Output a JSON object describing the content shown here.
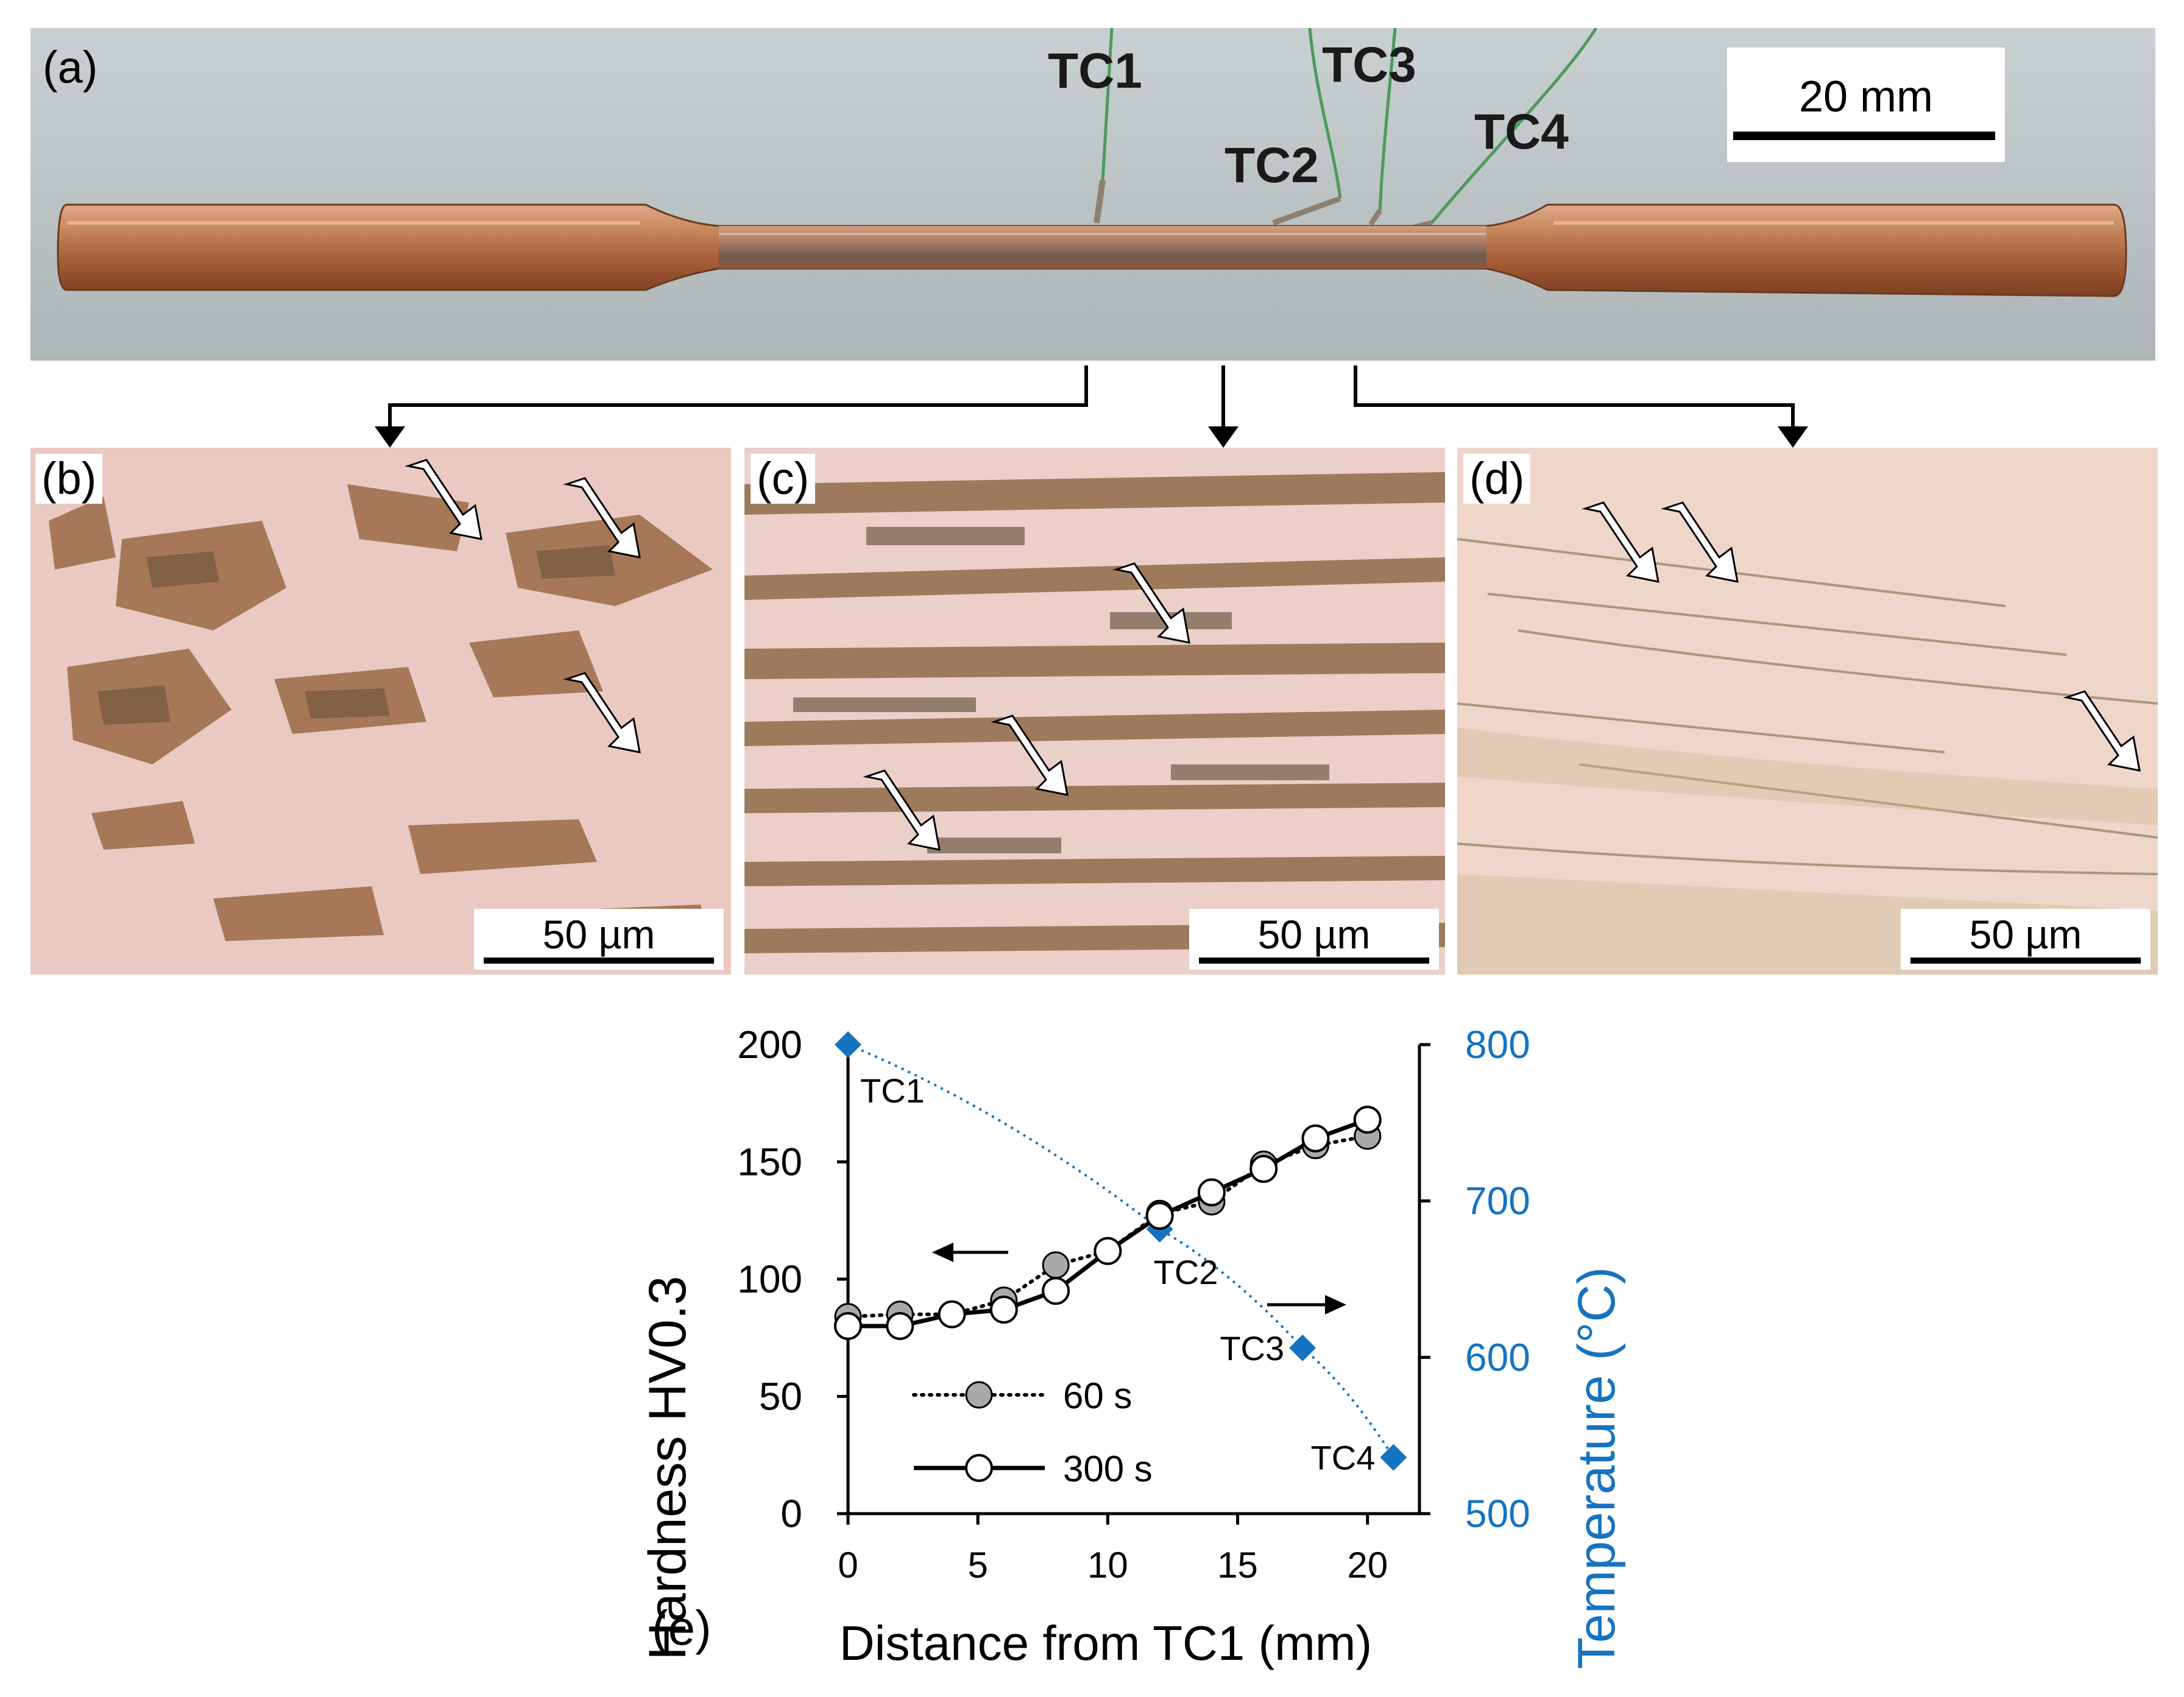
{
  "panels": {
    "a": {
      "label": "(a)",
      "scale": "20 mm",
      "thermocouples": [
        "TC1",
        "TC2",
        "TC3",
        "TC4"
      ],
      "colors": {
        "copper": "#b8734a",
        "background": "#bdc5c6"
      }
    },
    "b": {
      "label": "(b)",
      "scale": "50 µm"
    },
    "c": {
      "label": "(c)",
      "scale": "50 µm"
    },
    "d": {
      "label": "(d)",
      "scale": "50 µm"
    },
    "e": {
      "label": "(e)"
    }
  },
  "chart_data": {
    "type": "line",
    "xlabel": "Distance from TC1 (mm)",
    "ylabel": "Hardness HV0.3",
    "y2label": "Temperature (°C)",
    "xlim": [
      0,
      22
    ],
    "ylim": [
      0,
      200
    ],
    "y2lim": [
      500,
      800
    ],
    "xticks": [
      0,
      5,
      10,
      15,
      20
    ],
    "yticks": [
      0,
      50,
      100,
      150,
      200
    ],
    "y2ticks": [
      500,
      600,
      700,
      800
    ],
    "series": [
      {
        "name": "60 s",
        "axis": "left",
        "style": "dotted",
        "marker": "circle-filled-gray",
        "x": [
          0,
          2,
          4,
          6,
          8,
          10,
          12,
          14,
          16,
          18,
          20
        ],
        "y": [
          84,
          85,
          85,
          91,
          106,
          112,
          128,
          133,
          149,
          157,
          161
        ]
      },
      {
        "name": "300 s",
        "axis": "left",
        "style": "solid",
        "marker": "circle-open",
        "x": [
          0,
          2,
          4,
          6,
          8,
          10,
          12,
          14,
          16,
          18,
          20
        ],
        "y": [
          80,
          80,
          85,
          87,
          95,
          112,
          127,
          137,
          147,
          160,
          168
        ]
      },
      {
        "axis": "right",
        "style": "dotted-blue",
        "marker": "diamond-blue",
        "x": [
          0,
          12,
          17.5,
          21
        ],
        "y": [
          800,
          682,
          606,
          536
        ],
        "labels": [
          "TC1",
          "TC2",
          "TC3",
          "TC4"
        ]
      }
    ],
    "colors": {
      "temperature": "#1673c0",
      "gray_marker": "#a9a9a9"
    }
  }
}
